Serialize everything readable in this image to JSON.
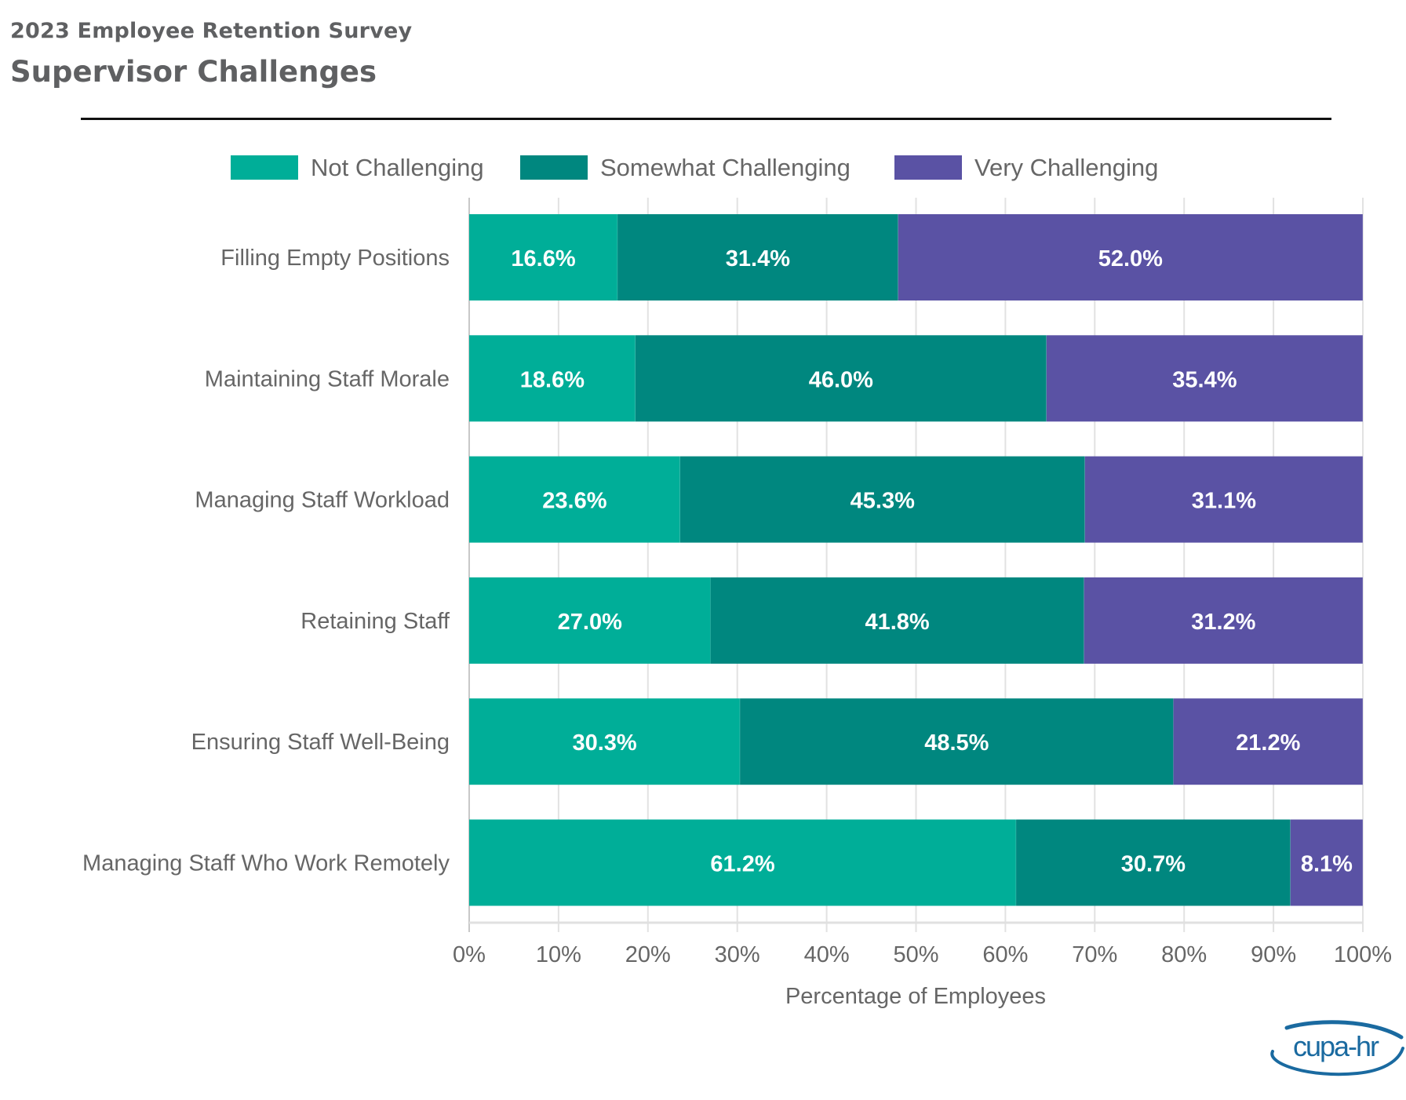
{
  "header": {
    "supertitle": "2023 Employee Retention Survey",
    "title": "Supervisor Challenges"
  },
  "logo": {
    "text": "cupa-hr",
    "color": "#1a6aa0"
  },
  "chart_data": {
    "type": "bar",
    "orientation": "horizontal",
    "stacked": true,
    "title": "Supervisor Challenges",
    "xlabel": "Percentage of Employees",
    "ylabel": "",
    "xlim": [
      0,
      100
    ],
    "x_ticks": [
      "0%",
      "10%",
      "20%",
      "30%",
      "40%",
      "50%",
      "60%",
      "70%",
      "80%",
      "90%",
      "100%"
    ],
    "grid": true,
    "legend_position": "top-center",
    "categories": [
      "Filling Empty Positions",
      "Maintaining Staff Morale",
      "Managing Staff Workload",
      "Retaining Staff",
      "Ensuring Staff Well-Being",
      "Managing Staff Who Work Remotely"
    ],
    "series": [
      {
        "name": "Not Challenging",
        "color": "#00ae98",
        "values": [
          16.6,
          18.6,
          23.6,
          27.0,
          30.3,
          61.2
        ]
      },
      {
        "name": "Somewhat Challenging",
        "color": "#00877f",
        "values": [
          31.4,
          46.0,
          45.3,
          41.8,
          48.5,
          30.7
        ]
      },
      {
        "name": "Very Challenging",
        "color": "#5a52a4",
        "values": [
          52.0,
          35.4,
          31.1,
          31.2,
          21.2,
          8.1
        ]
      }
    ],
    "data_label_format": "{v}%",
    "data_label_decimals": 1
  }
}
